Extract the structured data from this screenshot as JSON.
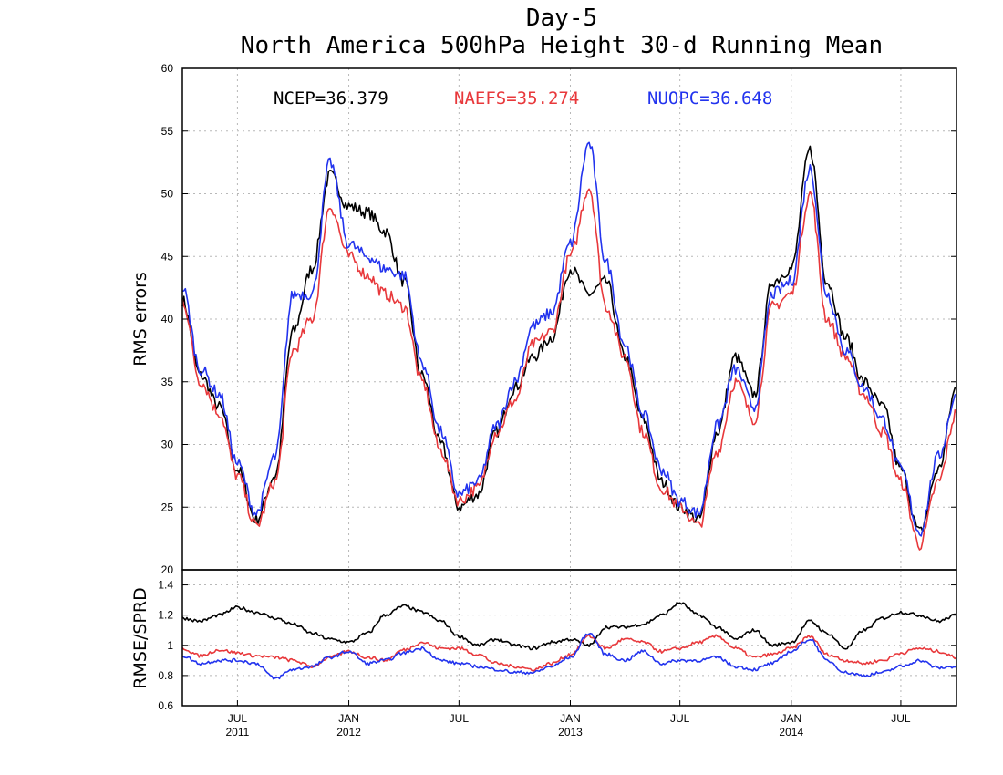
{
  "title_line1": "Day-5",
  "title_line2": "North America 500hPa Height 30-d Running Mean",
  "colors": {
    "ncep": "#000000",
    "naefs": "#e8383b",
    "nuopc": "#2233ee"
  },
  "legend": [
    {
      "label": "NCEP=36.379",
      "color": "#000000"
    },
    {
      "label": "NAEFS=35.274",
      "color": "#e8383b"
    },
    {
      "label": "NUOPC=36.648",
      "color": "#2233ee"
    }
  ],
  "x_ticks": [
    {
      "top": "JUL",
      "bottom": "2011",
      "date": "2011-07-01"
    },
    {
      "top": "JAN",
      "bottom": "2012",
      "date": "2012-01-01"
    },
    {
      "top": "JUL",
      "bottom": "",
      "date": "2012-07-01"
    },
    {
      "top": "JAN",
      "bottom": "2013",
      "date": "2013-01-01"
    },
    {
      "top": "JUL",
      "bottom": "",
      "date": "2013-07-01"
    },
    {
      "top": "JAN",
      "bottom": "2014",
      "date": "2014-01-01"
    },
    {
      "top": "JUL",
      "bottom": "",
      "date": "2014-07-01"
    }
  ],
  "chart_data": [
    {
      "type": "line",
      "panel": "upper",
      "title": "Day-5 North America 500hPa Height 30-d Running Mean",
      "xlabel": "",
      "ylabel": "RMS errors",
      "xlim": [
        "2011-04-01",
        "2014-10-01"
      ],
      "ylim": [
        20,
        60
      ],
      "yticks": [
        20,
        25,
        30,
        35,
        40,
        45,
        50,
        55,
        60
      ],
      "grid": true,
      "legend": "top",
      "x": [
        "2011-04-01",
        "2011-05-01",
        "2011-06-01",
        "2011-07-01",
        "2011-08-01",
        "2011-09-01",
        "2011-10-01",
        "2011-11-01",
        "2011-12-01",
        "2012-01-01",
        "2012-02-01",
        "2012-03-01",
        "2012-04-01",
        "2012-05-01",
        "2012-06-01",
        "2012-07-01",
        "2012-08-01",
        "2012-09-01",
        "2012-10-01",
        "2012-11-01",
        "2012-12-01",
        "2013-01-01",
        "2013-02-01",
        "2013-03-01",
        "2013-04-01",
        "2013-05-01",
        "2013-06-01",
        "2013-07-01",
        "2013-08-01",
        "2013-09-01",
        "2013-10-01",
        "2013-11-01",
        "2013-12-01",
        "2014-01-01",
        "2014-02-01",
        "2014-03-01",
        "2014-04-01",
        "2014-05-01",
        "2014-06-01",
        "2014-07-01",
        "2014-08-01",
        "2014-09-01",
        "2014-10-01"
      ],
      "series": [
        {
          "name": "NCEP",
          "color": "#000000",
          "values": [
            41.5,
            35.5,
            33,
            28,
            24,
            27.5,
            39,
            44,
            51.5,
            49,
            48.5,
            47,
            43,
            35.5,
            30,
            25,
            26,
            31,
            34.5,
            37,
            38.5,
            44,
            42,
            43,
            37,
            32,
            27,
            25,
            24,
            31,
            37,
            34,
            43,
            44,
            53.5,
            43,
            38.5,
            35,
            33,
            28,
            23,
            28,
            34.5
          ]
        },
        {
          "name": "NAEFS",
          "color": "#e8383b",
          "values": [
            41.5,
            35,
            32.5,
            27.5,
            23.5,
            27,
            37.5,
            40,
            49,
            45,
            43.5,
            42,
            41,
            35,
            29.5,
            25.5,
            26.5,
            31,
            33.5,
            38,
            39,
            45,
            50.5,
            41,
            37,
            31,
            26.5,
            25,
            23.5,
            29.5,
            35,
            32,
            41,
            42,
            50,
            40,
            37,
            34,
            31,
            27,
            22,
            27,
            32.5
          ]
        },
        {
          "name": "NUOPC",
          "color": "#2233ee",
          "values": [
            42.5,
            36,
            34,
            28.5,
            24.5,
            29,
            42,
            42,
            52.5,
            46,
            45,
            44,
            43.5,
            36.5,
            31,
            26,
            27,
            31.5,
            35,
            39.5,
            40.5,
            46,
            54,
            44.5,
            38,
            32.5,
            28,
            25.5,
            24.5,
            31.5,
            36,
            33,
            42,
            43,
            52,
            42,
            37.5,
            34.5,
            32,
            28,
            23,
            29,
            34
          ]
        }
      ]
    },
    {
      "type": "line",
      "panel": "lower",
      "title": "",
      "xlabel": "",
      "ylabel": "RMSE/SPRD",
      "xlim": [
        "2011-04-01",
        "2014-10-01"
      ],
      "ylim": [
        0.6,
        1.5
      ],
      "yticks": [
        0.6,
        0.8,
        1,
        1.2,
        1.4
      ],
      "grid": true,
      "x": [
        "2011-04-01",
        "2011-05-01",
        "2011-06-01",
        "2011-07-01",
        "2011-08-01",
        "2011-09-01",
        "2011-10-01",
        "2011-11-01",
        "2011-12-01",
        "2012-01-01",
        "2012-02-01",
        "2012-03-01",
        "2012-04-01",
        "2012-05-01",
        "2012-06-01",
        "2012-07-01",
        "2012-08-01",
        "2012-09-01",
        "2012-10-01",
        "2012-11-01",
        "2012-12-01",
        "2013-01-01",
        "2013-02-01",
        "2013-03-01",
        "2013-04-01",
        "2013-05-01",
        "2013-06-01",
        "2013-07-01",
        "2013-08-01",
        "2013-09-01",
        "2013-10-01",
        "2013-11-01",
        "2013-12-01",
        "2014-01-01",
        "2014-02-01",
        "2014-03-01",
        "2014-04-01",
        "2014-05-01",
        "2014-06-01",
        "2014-07-01",
        "2014-08-01",
        "2014-09-01",
        "2014-10-01"
      ],
      "series": [
        {
          "name": "NCEP",
          "color": "#000000",
          "values": [
            1.18,
            1.16,
            1.2,
            1.25,
            1.22,
            1.18,
            1.14,
            1.08,
            1.04,
            1.02,
            1.08,
            1.2,
            1.26,
            1.22,
            1.16,
            1.06,
            1,
            1.04,
            1.0,
            0.98,
            1.02,
            1.04,
            1.0,
            1.12,
            1.12,
            1.14,
            1.2,
            1.28,
            1.2,
            1.12,
            1.04,
            1.1,
            1.0,
            1.02,
            1.16,
            1.08,
            0.98,
            1.1,
            1.18,
            1.22,
            1.2,
            1.16,
            1.2
          ]
        },
        {
          "name": "NAEFS",
          "color": "#e8383b",
          "values": [
            0.98,
            0.93,
            0.97,
            0.95,
            0.93,
            0.92,
            0.9,
            0.86,
            0.92,
            0.96,
            0.92,
            0.9,
            0.97,
            1.02,
            0.98,
            0.98,
            0.94,
            0.88,
            0.86,
            0.84,
            0.88,
            0.94,
            1.06,
            0.98,
            1.04,
            1.02,
            0.96,
            0.98,
            1.02,
            1.06,
            0.98,
            0.92,
            0.94,
            0.98,
            1.06,
            0.94,
            0.9,
            0.88,
            0.9,
            0.95,
            0.98,
            0.96,
            0.92
          ]
        },
        {
          "name": "NUOPC",
          "color": "#2233ee",
          "values": [
            0.93,
            0.88,
            0.9,
            0.9,
            0.88,
            0.78,
            0.84,
            0.86,
            0.92,
            0.96,
            0.88,
            0.9,
            0.95,
            0.98,
            0.9,
            0.88,
            0.86,
            0.84,
            0.82,
            0.82,
            0.86,
            0.92,
            1.08,
            0.94,
            0.9,
            0.96,
            0.88,
            0.9,
            0.9,
            0.92,
            0.86,
            0.84,
            0.88,
            0.96,
            1.04,
            0.9,
            0.82,
            0.8,
            0.82,
            0.86,
            0.9,
            0.85,
            0.86
          ]
        }
      ]
    }
  ]
}
